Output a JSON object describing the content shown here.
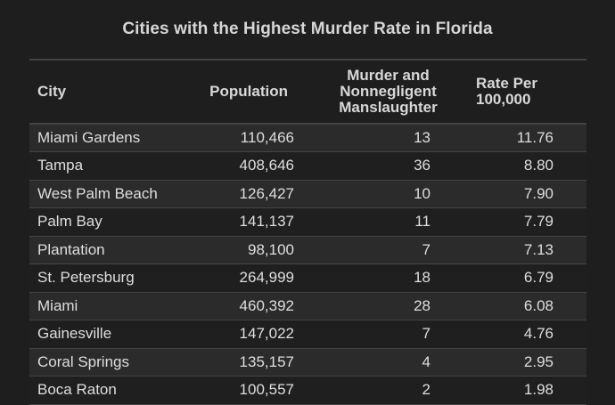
{
  "title": "Cities with the Highest Murder Rate in Florida",
  "table": {
    "headers": {
      "city": "City",
      "population": "Population",
      "murder_line1": "Murder and",
      "murder_line2": "Nonnegligent",
      "murder_line3": "Manslaughter",
      "rate_line1": "Rate Per",
      "rate_line2": "100,000"
    },
    "rows": [
      {
        "city": "Miami Gardens",
        "population": "110,466",
        "murders": "13",
        "rate": "11.76"
      },
      {
        "city": "Tampa",
        "population": "408,646",
        "murders": "36",
        "rate": "8.80"
      },
      {
        "city": "West Palm Beach",
        "population": "126,427",
        "murders": "10",
        "rate": "7.90"
      },
      {
        "city": "Palm Bay",
        "population": "141,137",
        "murders": "11",
        "rate": "7.79"
      },
      {
        "city": "Plantation",
        "population": "98,100",
        "murders": "7",
        "rate": "7.13"
      },
      {
        "city": "St. Petersburg",
        "population": "264,999",
        "murders": "18",
        "rate": "6.79"
      },
      {
        "city": "Miami",
        "population": "460,392",
        "murders": "28",
        "rate": "6.08"
      },
      {
        "city": "Gainesville",
        "population": "147,022",
        "murders": "7",
        "rate": "4.76"
      },
      {
        "city": "Coral Springs",
        "population": "135,157",
        "murders": "4",
        "rate": "2.95"
      },
      {
        "city": "Boca Raton",
        "population": "100,557",
        "murders": "2",
        "rate": "1.98"
      }
    ]
  },
  "colors": {
    "background": "#1e1e1e",
    "row_odd": "#2b2b2b",
    "row_even": "#1f1f1f",
    "border": "#444444",
    "text": "#dedede"
  }
}
